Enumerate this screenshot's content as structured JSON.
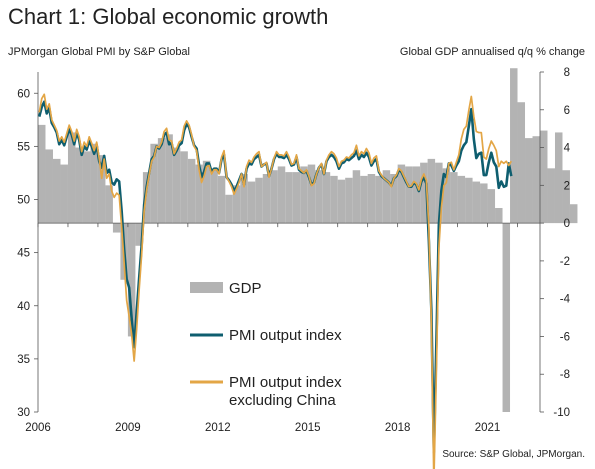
{
  "chart_data": {
    "type": "bar+line",
    "title": "Chart 1: Global economic growth",
    "left_axis_label": "JPMorgan Global PMI by S&P Global",
    "right_axis_label": "Global GDP annualised q/q % change",
    "source": "Source: S&P Global, JPMorgan.",
    "x_ticks": [
      "2006",
      "2009",
      "2012",
      "2015",
      "2018",
      "2021"
    ],
    "xlim": [
      2006,
      2022.75
    ],
    "left_ylim": [
      30,
      62
    ],
    "left_ticks": [
      "30",
      "35",
      "40",
      "45",
      "50",
      "55",
      "60"
    ],
    "right_ylim": [
      -10,
      8
    ],
    "right_ticks": [
      "-10",
      "-8",
      "-6",
      "-4",
      "-2",
      "0",
      "2",
      "4",
      "6",
      "8"
    ],
    "legend": {
      "gdp": "GDP",
      "pmi": "PMI output index",
      "pmi_ex_china_line1": "PMI output index",
      "pmi_ex_china_line2": "excluding China"
    },
    "colors": {
      "gdp": "#b3b3b3",
      "pmi": "#0e5e6f",
      "pmi_ex_china": "#e3a646"
    },
    "gdp": {
      "quarters_start": 2006.0,
      "values": [
        5.2,
        3.9,
        3.4,
        3.1,
        4.8,
        4.0,
        3.8,
        4.2,
        3.6,
        2.0,
        -0.5,
        -3.0,
        -6.0,
        -1.2,
        2.7,
        4.2,
        4.5,
        4.7,
        4.0,
        3.8,
        3.4,
        3.1,
        3.3,
        2.9,
        2.5,
        1.5,
        2.0,
        2.6,
        2.2,
        2.4,
        2.6,
        2.8,
        3.0,
        2.7,
        2.7,
        3.0,
        3.1,
        2.8,
        2.7,
        2.5,
        2.3,
        2.4,
        2.8,
        2.5,
        2.6,
        2.5,
        2.8,
        2.6,
        3.1,
        3.0,
        3.0,
        3.2,
        3.4,
        3.2,
        2.9,
        2.7,
        2.5,
        2.4,
        2.2,
        2.1,
        1.8,
        0.8,
        -10.0,
        8.2,
        6.4,
        4.5,
        4.6,
        4.9,
        2.9,
        4.8,
        2.8,
        1.0
      ]
    },
    "pmi": {
      "months_start": 2006.0,
      "values": [
        57.8,
        58.7,
        59.2,
        58.1,
        58.6,
        57.2,
        56.8,
        56.3,
        55.2,
        55.6,
        55.1,
        55.9,
        56.6,
        56.1,
        55.2,
        56.3,
        55.6,
        54.2,
        55.0,
        54.7,
        55.5,
        55.0,
        54.3,
        55.1,
        53.6,
        53.0,
        54.1,
        52.5,
        52.8,
        51.6,
        51.4,
        51.9,
        51.7,
        48.9,
        45.3,
        42.5,
        41.7,
        38.8,
        36.1,
        39.4,
        42.6,
        45.7,
        49.5,
        51.2,
        52.5,
        53.8,
        54.1,
        55.0,
        54.8,
        55.2,
        56.1,
        56.3,
        55.2,
        55.3,
        54.2,
        54.6,
        55.1,
        55.3,
        56.5,
        57.1,
        56.8,
        55.9,
        55.1,
        54.8,
        53.2,
        52.1,
        52.6,
        53.4,
        53.4,
        52.6,
        52.9,
        52.9,
        52.5,
        53.8,
        54.2,
        52.1,
        51.8,
        51.4,
        50.8,
        51.2,
        51.8,
        52.4,
        51.4,
        52.9,
        53.4,
        53.3,
        53.8,
        54.0,
        54.2,
        53.1,
        53.3,
        53.4,
        52.2,
        52.9,
        53.8,
        54.3,
        54.0,
        54.0,
        53.9,
        54.2,
        53.8,
        53.2,
        53.3,
        54.0,
        52.8,
        52.6,
        52.5,
        52.7,
        52.1,
        51.4,
        51.6,
        52.4,
        53.0,
        53.3,
        52.4,
        53.6,
        54.0,
        54.2,
        54.0,
        53.6,
        52.9,
        53.4,
        53.5,
        53.8,
        53.7,
        53.9,
        54.1,
        54.6,
        53.8,
        54.2,
        54.0,
        54.4,
        54.0,
        53.2,
        53.6,
        53.8,
        52.6,
        52.2,
        52.0,
        51.8,
        51.6,
        51.3,
        52.0,
        52.2,
        52.8,
        52.6,
        52.1,
        51.6,
        51.2,
        51.2,
        51.6,
        51.4,
        50.8,
        51.7,
        52.1,
        51.5,
        46.1,
        39.6,
        26.2,
        36.4,
        47.6,
        50.8,
        52.4,
        52.1,
        53.4,
        53.2,
        52.7,
        53.2,
        53.6,
        54.6,
        55.1,
        55.4,
        56.9,
        58.5,
        55.7,
        53.9,
        54.3,
        54.4,
        52.3,
        52.3,
        53.5,
        54.4,
        53.5,
        53.1,
        51.1,
        51.7,
        51.2,
        51.3,
        53.4,
        52.2
      ]
    },
    "pmi_ex_china": {
      "months_start": 2006.0,
      "values": [
        58.2,
        59.5,
        59.9,
        58.5,
        59.0,
        57.5,
        57.0,
        56.5,
        55.5,
        55.9,
        55.4,
        56.2,
        57.0,
        56.4,
        55.5,
        56.6,
        55.9,
        54.5,
        55.4,
        55.0,
        55.9,
        55.3,
        54.6,
        55.4,
        53.9,
        52.0,
        53.8,
        52.0,
        52.4,
        50.8,
        50.2,
        50.6,
        50.4,
        47.4,
        44.0,
        40.5,
        39.0,
        37.3,
        34.8,
        37.8,
        41.5,
        44.8,
        48.9,
        50.9,
        52.3,
        53.6,
        54.0,
        55.0,
        54.9,
        55.4,
        56.4,
        56.7,
        55.6,
        55.5,
        54.3,
        54.8,
        55.4,
        55.6,
        56.9,
        57.4,
        57.0,
        56.1,
        55.0,
        54.6,
        52.8,
        51.6,
        52.2,
        53.1,
        53.2,
        52.4,
        52.8,
        52.8,
        52.4,
        54.0,
        54.6,
        52.1,
        51.7,
        51.2,
        50.5,
        51.0,
        51.6,
        52.4,
        51.2,
        53.1,
        53.7,
        53.5,
        54.0,
        54.3,
        54.5,
        53.1,
        53.3,
        53.5,
        52.1,
        52.9,
        53.9,
        54.5,
        54.2,
        54.2,
        54.1,
        54.5,
        54.0,
        53.3,
        53.4,
        54.2,
        52.9,
        52.7,
        52.5,
        52.8,
        52.2,
        51.3,
        51.5,
        52.4,
        53.0,
        53.4,
        52.4,
        53.7,
        54.2,
        54.5,
        54.3,
        53.9,
        53.1,
        53.6,
        53.7,
        54.0,
        53.9,
        54.2,
        54.4,
        55.1,
        54.1,
        54.5,
        54.3,
        54.8,
        54.4,
        53.4,
        53.9,
        54.1,
        52.7,
        52.3,
        52.0,
        51.8,
        51.6,
        51.2,
        52.0,
        52.3,
        52.9,
        52.7,
        52.2,
        51.7,
        51.2,
        51.3,
        51.7,
        51.5,
        50.9,
        51.9,
        52.4,
        51.8,
        47.4,
        38.2,
        23.3,
        33.6,
        45.4,
        49.2,
        51.3,
        51.6,
        53.4,
        53.5,
        52.8,
        53.5,
        54.2,
        55.7,
        56.6,
        56.9,
        58.4,
        59.7,
        57.8,
        56.4,
        56.3,
        56.3,
        54.0,
        53.8,
        54.8,
        55.5,
        55.1,
        54.6,
        53.1,
        53.6,
        53.4,
        53.6,
        53.2,
        53.6
      ]
    }
  }
}
